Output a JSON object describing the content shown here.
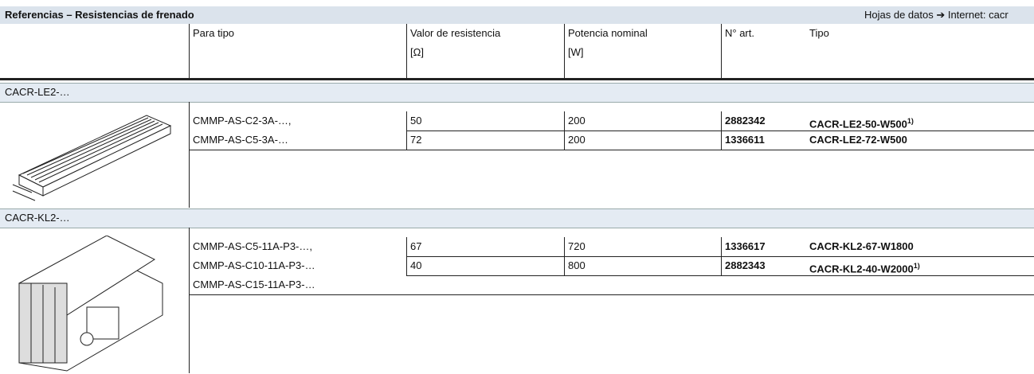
{
  "header": {
    "title": "Referencias – Resistencias de frenado",
    "link": "Hojas de datos ➔ Internet: cacr"
  },
  "columns": [
    "Para tipo",
    "Valor de resistencia",
    "Potencia nominal",
    "N° art.",
    "Tipo"
  ],
  "units": [
    "[Ω]",
    "[W]"
  ],
  "sections": [
    {
      "name": "CACR-LE2-…",
      "para_tipo": [
        "CMMP-AS-C2-3A-…,",
        "CMMP-AS-C5-3A-…"
      ],
      "rows": [
        {
          "valor": 50,
          "potencia": 200,
          "articulo": 2882342,
          "tipo": "CACR-LE2-50-W500",
          "nota": "1)"
        },
        {
          "valor": 72,
          "potencia": 200,
          "articulo": 1336611,
          "tipo": "CACR-LE2-72-W500"
        }
      ]
    },
    {
      "name": "CACR-KL2-…",
      "para_tipo": [
        "CMMP-AS-C5-11A-P3-…,",
        "CMMP-AS-C10-11A-P3-…",
        "CMMP-AS-C15-11A-P3-…"
      ],
      "rows": [
        {
          "valor": 67,
          "potencia": 720,
          "articulo": 1336617,
          "tipo": "CACR-KL2-67-W1800"
        },
        {
          "valor": 40,
          "potencia": 800,
          "articulo": 2882343,
          "tipo": "CACR-KL2-40-W2000",
          "nota": "1)"
        }
      ]
    }
  ]
}
